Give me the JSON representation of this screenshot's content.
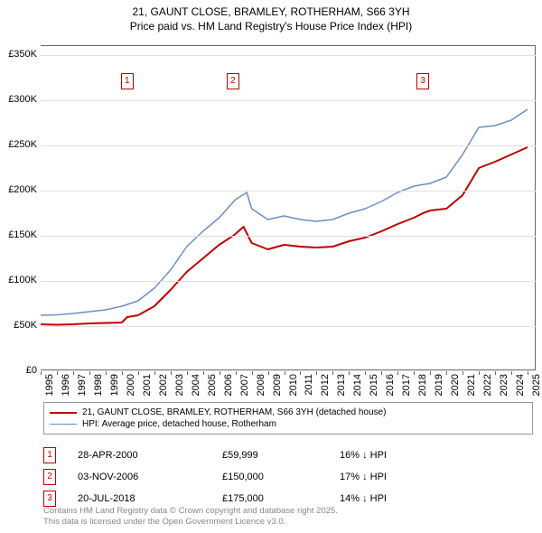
{
  "title_line1": "21, GAUNT CLOSE, BRAMLEY, ROTHERHAM, S66 3YH",
  "title_line2": "Price paid vs. HM Land Registry's House Price Index (HPI)",
  "chart": {
    "type": "line",
    "background_color": "#ffffff",
    "grid_color": "#e0e0e0",
    "border_color": "#666666",
    "xlim": [
      1995,
      2025.5
    ],
    "ylim": [
      0,
      360000
    ],
    "ytick_step": 50000,
    "yticks": [
      {
        "v": 0,
        "label": "£0"
      },
      {
        "v": 50000,
        "label": "£50K"
      },
      {
        "v": 100000,
        "label": "£100K"
      },
      {
        "v": 150000,
        "label": "£150K"
      },
      {
        "v": 200000,
        "label": "£200K"
      },
      {
        "v": 250000,
        "label": "£250K"
      },
      {
        "v": 300000,
        "label": "£300K"
      },
      {
        "v": 350000,
        "label": "£350K"
      }
    ],
    "xticks": [
      1995,
      1996,
      1997,
      1998,
      1999,
      2000,
      2001,
      2002,
      2003,
      2004,
      2005,
      2006,
      2007,
      2008,
      2009,
      2010,
      2011,
      2012,
      2013,
      2014,
      2015,
      2016,
      2017,
      2018,
      2019,
      2020,
      2021,
      2022,
      2023,
      2024,
      2025
    ],
    "series": [
      {
        "name": "price_paid",
        "label": "21, GAUNT CLOSE, BRAMLEY, ROTHERHAM, S66 3YH (detached house)",
        "color": "#c00000",
        "line_width": 2,
        "points": [
          [
            1995,
            52000
          ],
          [
            1996,
            51500
          ],
          [
            1997,
            52000
          ],
          [
            1998,
            53000
          ],
          [
            1999,
            53500
          ],
          [
            2000,
            54000
          ],
          [
            2000.33,
            59999
          ],
          [
            2001,
            62000
          ],
          [
            2002,
            72000
          ],
          [
            2003,
            90000
          ],
          [
            2004,
            110000
          ],
          [
            2005,
            125000
          ],
          [
            2006,
            140000
          ],
          [
            2006.85,
            150000
          ],
          [
            2007,
            152000
          ],
          [
            2007.5,
            160000
          ],
          [
            2008,
            142000
          ],
          [
            2009,
            135000
          ],
          [
            2010,
            140000
          ],
          [
            2011,
            138000
          ],
          [
            2012,
            137000
          ],
          [
            2013,
            138000
          ],
          [
            2014,
            144000
          ],
          [
            2015,
            148000
          ],
          [
            2016,
            155000
          ],
          [
            2017,
            163000
          ],
          [
            2018,
            170000
          ],
          [
            2018.55,
            175000
          ],
          [
            2019,
            178000
          ],
          [
            2020,
            180000
          ],
          [
            2021,
            195000
          ],
          [
            2022,
            225000
          ],
          [
            2023,
            232000
          ],
          [
            2024,
            240000
          ],
          [
            2025,
            248000
          ]
        ]
      },
      {
        "name": "hpi",
        "label": "HPI: Average price, detached house, Rotherham",
        "color": "#6a8fc5",
        "line_width": 1.5,
        "points": [
          [
            1995,
            62000
          ],
          [
            1996,
            62500
          ],
          [
            1997,
            64000
          ],
          [
            1998,
            66000
          ],
          [
            1999,
            68000
          ],
          [
            2000,
            72000
          ],
          [
            2001,
            78000
          ],
          [
            2002,
            92000
          ],
          [
            2003,
            112000
          ],
          [
            2004,
            138000
          ],
          [
            2005,
            155000
          ],
          [
            2006,
            170000
          ],
          [
            2007,
            190000
          ],
          [
            2007.7,
            198000
          ],
          [
            2008,
            180000
          ],
          [
            2009,
            168000
          ],
          [
            2010,
            172000
          ],
          [
            2011,
            168000
          ],
          [
            2012,
            166000
          ],
          [
            2013,
            168000
          ],
          [
            2014,
            175000
          ],
          [
            2015,
            180000
          ],
          [
            2016,
            188000
          ],
          [
            2017,
            198000
          ],
          [
            2018,
            205000
          ],
          [
            2019,
            208000
          ],
          [
            2020,
            215000
          ],
          [
            2021,
            240000
          ],
          [
            2022,
            270000
          ],
          [
            2023,
            272000
          ],
          [
            2024,
            278000
          ],
          [
            2025,
            290000
          ]
        ]
      }
    ],
    "markers": [
      {
        "id": "1",
        "x": 2000.33,
        "y_top": 330000
      },
      {
        "id": "2",
        "x": 2006.85,
        "y_top": 330000
      },
      {
        "id": "3",
        "x": 2018.55,
        "y_top": 330000
      }
    ]
  },
  "legend": {
    "border_color": "#999999",
    "items": [
      {
        "color": "#c00000",
        "width": 2,
        "label": "21, GAUNT CLOSE, BRAMLEY, ROTHERHAM, S66 3YH (detached house)"
      },
      {
        "color": "#6a8fc5",
        "width": 1.5,
        "label": "HPI: Average price, detached house, Rotherham"
      }
    ]
  },
  "sales": [
    {
      "id": "1",
      "date": "28-APR-2000",
      "price": "£59,999",
      "diff": "16% ↓ HPI"
    },
    {
      "id": "2",
      "date": "03-NOV-2006",
      "price": "£150,000",
      "diff": "17% ↓ HPI"
    },
    {
      "id": "3",
      "date": "20-JUL-2018",
      "price": "£175,000",
      "diff": "14% ↓ HPI"
    }
  ],
  "footer_line1": "Contains HM Land Registry data © Crown copyright and database right 2025.",
  "footer_line2": "This data is licensed under the Open Government Licence v3.0.",
  "colors": {
    "marker_border": "#c00000",
    "text": "#000000",
    "footer_text": "#888888"
  }
}
